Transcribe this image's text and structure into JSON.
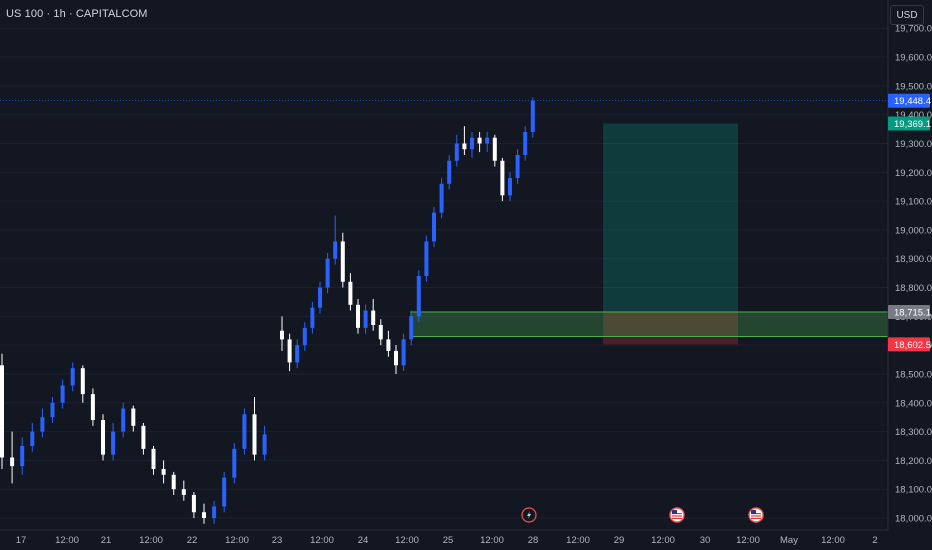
{
  "header": {
    "title": "US 100 · 1h · CAPITALCOM",
    "currency_button": "USD"
  },
  "price_axis": {
    "ticks": [
      "19,700.0",
      "19,600.0",
      "19,500.0",
      "19,400.0",
      "19,300.0",
      "19,200.0",
      "19,100.0",
      "19,000.0",
      "18,900.0",
      "18,800.0",
      "18,700.0",
      "18,600.0",
      "18,500.0",
      "18,400.0",
      "18,300.0",
      "18,200.0",
      "18,100.0",
      "18,000.0"
    ],
    "tick_values": [
      19700,
      19600,
      19500,
      19400,
      19300,
      19200,
      19100,
      19000,
      18900,
      18800,
      18700,
      18600,
      18500,
      18400,
      18300,
      18200,
      18100,
      18000
    ],
    "labels": [
      {
        "text": "19,448.4",
        "value": 19448.4,
        "color": "#2962ff"
      },
      {
        "text": "19,369.1",
        "value": 19369.1,
        "color": "#089981"
      },
      {
        "text": "18,715.1",
        "value": 18715.1,
        "color": "#787b86"
      },
      {
        "text": "18,602.5",
        "value": 18602.5,
        "color": "#f23645"
      }
    ]
  },
  "time_axis": {
    "labels": [
      "17",
      "12:00",
      "21",
      "12:00",
      "22",
      "12:00",
      "23",
      "12:00",
      "24",
      "12:00",
      "25",
      "12:00",
      "28",
      "12:00",
      "29",
      "12:00",
      "30",
      "12:00",
      "May",
      "12:00",
      "2"
    ]
  },
  "event_icons": [
    "lightning-icon",
    "us-flag-icon",
    "us-flag-icon"
  ],
  "chart_data": {
    "type": "candlestick",
    "symbol": "US 100",
    "timeframe": "1h",
    "source": "CAPITALCOM",
    "current_price": 19448.4,
    "zones": {
      "support_box": {
        "top": 18715.1,
        "bottom": 18630,
        "color": "#4caf50"
      },
      "long_position": {
        "entry": 18715.1,
        "target": 19369.1,
        "stop": 18602.5,
        "profit_color": "#089981",
        "loss_color": "#f23645"
      }
    },
    "candles": [
      {
        "o": 18530,
        "h": 18570,
        "l": 18170,
        "c": 18210
      },
      {
        "o": 18210,
        "h": 18300,
        "l": 18120,
        "c": 18180
      },
      {
        "o": 18180,
        "h": 18280,
        "l": 18150,
        "c": 18250
      },
      {
        "o": 18250,
        "h": 18330,
        "l": 18230,
        "c": 18300
      },
      {
        "o": 18300,
        "h": 18380,
        "l": 18280,
        "c": 18350
      },
      {
        "o": 18350,
        "h": 18420,
        "l": 18330,
        "c": 18400
      },
      {
        "o": 18400,
        "h": 18480,
        "l": 18380,
        "c": 18460
      },
      {
        "o": 18460,
        "h": 18540,
        "l": 18440,
        "c": 18520
      },
      {
        "o": 18520,
        "h": 18530,
        "l": 18400,
        "c": 18430
      },
      {
        "o": 18430,
        "h": 18450,
        "l": 18320,
        "c": 18340
      },
      {
        "o": 18340,
        "h": 18360,
        "l": 18200,
        "c": 18220
      },
      {
        "o": 18220,
        "h": 18330,
        "l": 18200,
        "c": 18300
      },
      {
        "o": 18300,
        "h": 18400,
        "l": 18280,
        "c": 18380
      },
      {
        "o": 18380,
        "h": 18390,
        "l": 18300,
        "c": 18320
      },
      {
        "o": 18320,
        "h": 18330,
        "l": 18220,
        "c": 18240
      },
      {
        "o": 18240,
        "h": 18250,
        "l": 18150,
        "c": 18170
      },
      {
        "o": 18170,
        "h": 18200,
        "l": 18120,
        "c": 18150
      },
      {
        "o": 18150,
        "h": 18160,
        "l": 18080,
        "c": 18100
      },
      {
        "o": 18100,
        "h": 18130,
        "l": 18060,
        "c": 18080
      },
      {
        "o": 18080,
        "h": 18090,
        "l": 18000,
        "c": 18020
      },
      {
        "o": 18020,
        "h": 18050,
        "l": 17980,
        "c": 18000
      },
      {
        "o": 18000,
        "h": 18060,
        "l": 17980,
        "c": 18040
      },
      {
        "o": 18040,
        "h": 18160,
        "l": 18020,
        "c": 18140
      },
      {
        "o": 18140,
        "h": 18260,
        "l": 18120,
        "c": 18240
      },
      {
        "o": 18240,
        "h": 18380,
        "l": 18220,
        "c": 18360
      },
      {
        "o": 18360,
        "h": 18420,
        "l": 18200,
        "c": 18220
      },
      {
        "o": 18220,
        "h": 18320,
        "l": 18200,
        "c": 18290
      },
      {
        "o": 18650,
        "h": 18700,
        "l": 18580,
        "c": 18620
      },
      {
        "o": 18620,
        "h": 18640,
        "l": 18510,
        "c": 18540
      },
      {
        "o": 18540,
        "h": 18620,
        "l": 18520,
        "c": 18600
      },
      {
        "o": 18600,
        "h": 18680,
        "l": 18580,
        "c": 18660
      },
      {
        "o": 18660,
        "h": 18750,
        "l": 18640,
        "c": 18730
      },
      {
        "o": 18730,
        "h": 18820,
        "l": 18710,
        "c": 18800
      },
      {
        "o": 18800,
        "h": 18920,
        "l": 18780,
        "c": 18900
      },
      {
        "o": 18900,
        "h": 19050,
        "l": 18880,
        "c": 18960
      },
      {
        "o": 18960,
        "h": 18990,
        "l": 18800,
        "c": 18820
      },
      {
        "o": 18820,
        "h": 18850,
        "l": 18720,
        "c": 18740
      },
      {
        "o": 18740,
        "h": 18760,
        "l": 18640,
        "c": 18660
      },
      {
        "o": 18660,
        "h": 18740,
        "l": 18640,
        "c": 18720
      },
      {
        "o": 18720,
        "h": 18760,
        "l": 18650,
        "c": 18670
      },
      {
        "o": 18670,
        "h": 18690,
        "l": 18600,
        "c": 18620
      },
      {
        "o": 18620,
        "h": 18650,
        "l": 18560,
        "c": 18580
      },
      {
        "o": 18580,
        "h": 18600,
        "l": 18500,
        "c": 18530
      },
      {
        "o": 18530,
        "h": 18640,
        "l": 18510,
        "c": 18620
      },
      {
        "o": 18620,
        "h": 18720,
        "l": 18600,
        "c": 18700
      },
      {
        "o": 18700,
        "h": 18860,
        "l": 18680,
        "c": 18840
      },
      {
        "o": 18840,
        "h": 18980,
        "l": 18820,
        "c": 18960
      },
      {
        "o": 18960,
        "h": 19080,
        "l": 18940,
        "c": 19060
      },
      {
        "o": 19060,
        "h": 19180,
        "l": 19040,
        "c": 19160
      },
      {
        "o": 19160,
        "h": 19260,
        "l": 19140,
        "c": 19240
      },
      {
        "o": 19240,
        "h": 19330,
        "l": 19220,
        "c": 19300
      },
      {
        "o": 19300,
        "h": 19360,
        "l": 19260,
        "c": 19280
      },
      {
        "o": 19280,
        "h": 19340,
        "l": 19250,
        "c": 19320
      },
      {
        "o": 19320,
        "h": 19340,
        "l": 19270,
        "c": 19300
      },
      {
        "o": 19300,
        "h": 19340,
        "l": 19270,
        "c": 19320
      },
      {
        "o": 19320,
        "h": 19330,
        "l": 19220,
        "c": 19240
      },
      {
        "o": 19240,
        "h": 19250,
        "l": 19100,
        "c": 19120
      },
      {
        "o": 19120,
        "h": 19200,
        "l": 19100,
        "c": 19180
      },
      {
        "o": 19180,
        "h": 19280,
        "l": 19160,
        "c": 19260
      },
      {
        "o": 19260,
        "h": 19360,
        "l": 19240,
        "c": 19340
      },
      {
        "o": 19340,
        "h": 19460,
        "l": 19320,
        "c": 19448.4
      }
    ]
  }
}
